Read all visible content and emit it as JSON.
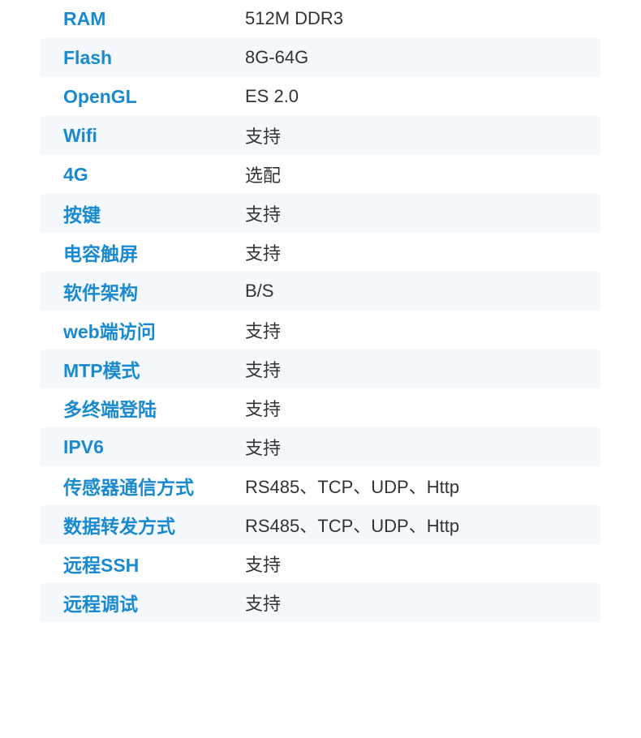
{
  "colors": {
    "label": "#1a8ad0",
    "value": "#333333",
    "stripe": "#f5f9fd"
  },
  "specs": [
    {
      "label": "RAM",
      "value": "512M DDR3"
    },
    {
      "label": "Flash",
      "value": "8G-64G"
    },
    {
      "label": "OpenGL",
      "value": "ES 2.0"
    },
    {
      "label": "Wifi",
      "value": "支持"
    },
    {
      "label": "4G",
      "value": "选配"
    },
    {
      "label": "按键",
      "value": "支持"
    },
    {
      "label": "电容触屏",
      "value": "支持"
    },
    {
      "label": "软件架构",
      "value": "B/S"
    },
    {
      "label": "web端访问",
      "value": "支持"
    },
    {
      "label": "MTP模式",
      "value": "支持"
    },
    {
      "label": "多终端登陆",
      "value": "支持"
    },
    {
      "label": "IPV6",
      "value": "支持"
    },
    {
      "label": "传感器通信方式",
      "value": "RS485、TCP、UDP、Http"
    },
    {
      "label": "数据转发方式",
      "value": "RS485、TCP、UDP、Http"
    },
    {
      "label": "远程SSH",
      "value": "支持"
    },
    {
      "label": "远程调试",
      "value": "支持"
    }
  ]
}
